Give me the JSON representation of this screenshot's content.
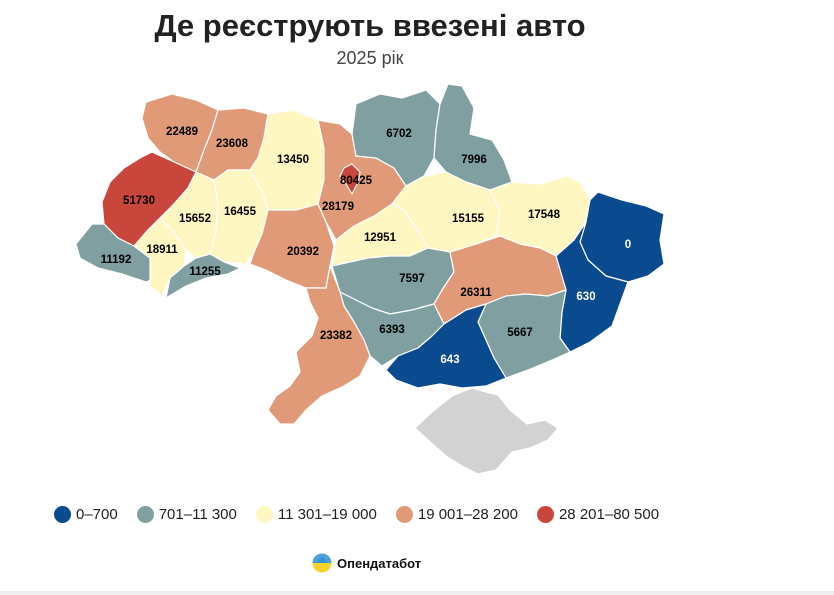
{
  "title": "Де реєструють ввезені авто",
  "subtitle": "2025 рік",
  "colors": {
    "c1": "#0a4a8f",
    "c2": "#7f9fa1",
    "c3": "#fff7c2",
    "c4": "#e09a77",
    "c5": "#c9463d",
    "crimea": "#d2d2d2"
  },
  "legend": [
    {
      "label": "0–700",
      "color": "#0a4a8f"
    },
    {
      "label": "701–11 300",
      "color": "#7f9fa1"
    },
    {
      "label": "11 301–19 000",
      "color": "#fff7c2"
    },
    {
      "label": "19 001–28 200",
      "color": "#e09a77"
    },
    {
      "label": "28 201–80 500",
      "color": "#c9463d"
    }
  ],
  "regions": [
    {
      "name": "volyn",
      "value": "22489",
      "class": "c4"
    },
    {
      "name": "rivne",
      "value": "23608",
      "class": "c4"
    },
    {
      "name": "lviv",
      "value": "51730",
      "class": "c5"
    },
    {
      "name": "ternopil",
      "value": "15652",
      "class": "c3"
    },
    {
      "name": "khmelnytskyi",
      "value": "16455",
      "class": "c3"
    },
    {
      "name": "zhytomyr",
      "value": "13450",
      "class": "c3"
    },
    {
      "name": "kyiv-oblast",
      "value": "28179",
      "class": "c4"
    },
    {
      "name": "kyiv-city",
      "value": "80425",
      "class": "c5"
    },
    {
      "name": "chernihiv",
      "value": "6702",
      "class": "c2"
    },
    {
      "name": "sumy",
      "value": "7996",
      "class": "c2"
    },
    {
      "name": "poltava",
      "value": "15155",
      "class": "c3"
    },
    {
      "name": "kharkiv",
      "value": "17548",
      "class": "c3"
    },
    {
      "name": "luhansk",
      "value": "0",
      "class": "c1"
    },
    {
      "name": "donetsk",
      "value": "630",
      "class": "c1"
    },
    {
      "name": "zakarpattia",
      "value": "11192",
      "class": "c2"
    },
    {
      "name": "ivano-frankivsk",
      "value": "18911",
      "class": "c3"
    },
    {
      "name": "chernivtsi",
      "value": "11255",
      "class": "c2"
    },
    {
      "name": "vinnytsia",
      "value": "20392",
      "class": "c4"
    },
    {
      "name": "cherkasy",
      "value": "12951",
      "class": "c3"
    },
    {
      "name": "kirovohrad",
      "value": "7597",
      "class": "c2"
    },
    {
      "name": "dnipropetrovsk",
      "value": "26311",
      "class": "c4"
    },
    {
      "name": "zaporizhzhia",
      "value": "5667",
      "class": "c2"
    },
    {
      "name": "mykolaiv",
      "value": "6393",
      "class": "c2"
    },
    {
      "name": "odesa",
      "value": "23382",
      "class": "c4"
    },
    {
      "name": "kherson",
      "value": "643",
      "class": "c1"
    },
    {
      "name": "crimea",
      "value": "",
      "class": "crimea"
    }
  ],
  "brand": {
    "label": "Опендатабот"
  }
}
